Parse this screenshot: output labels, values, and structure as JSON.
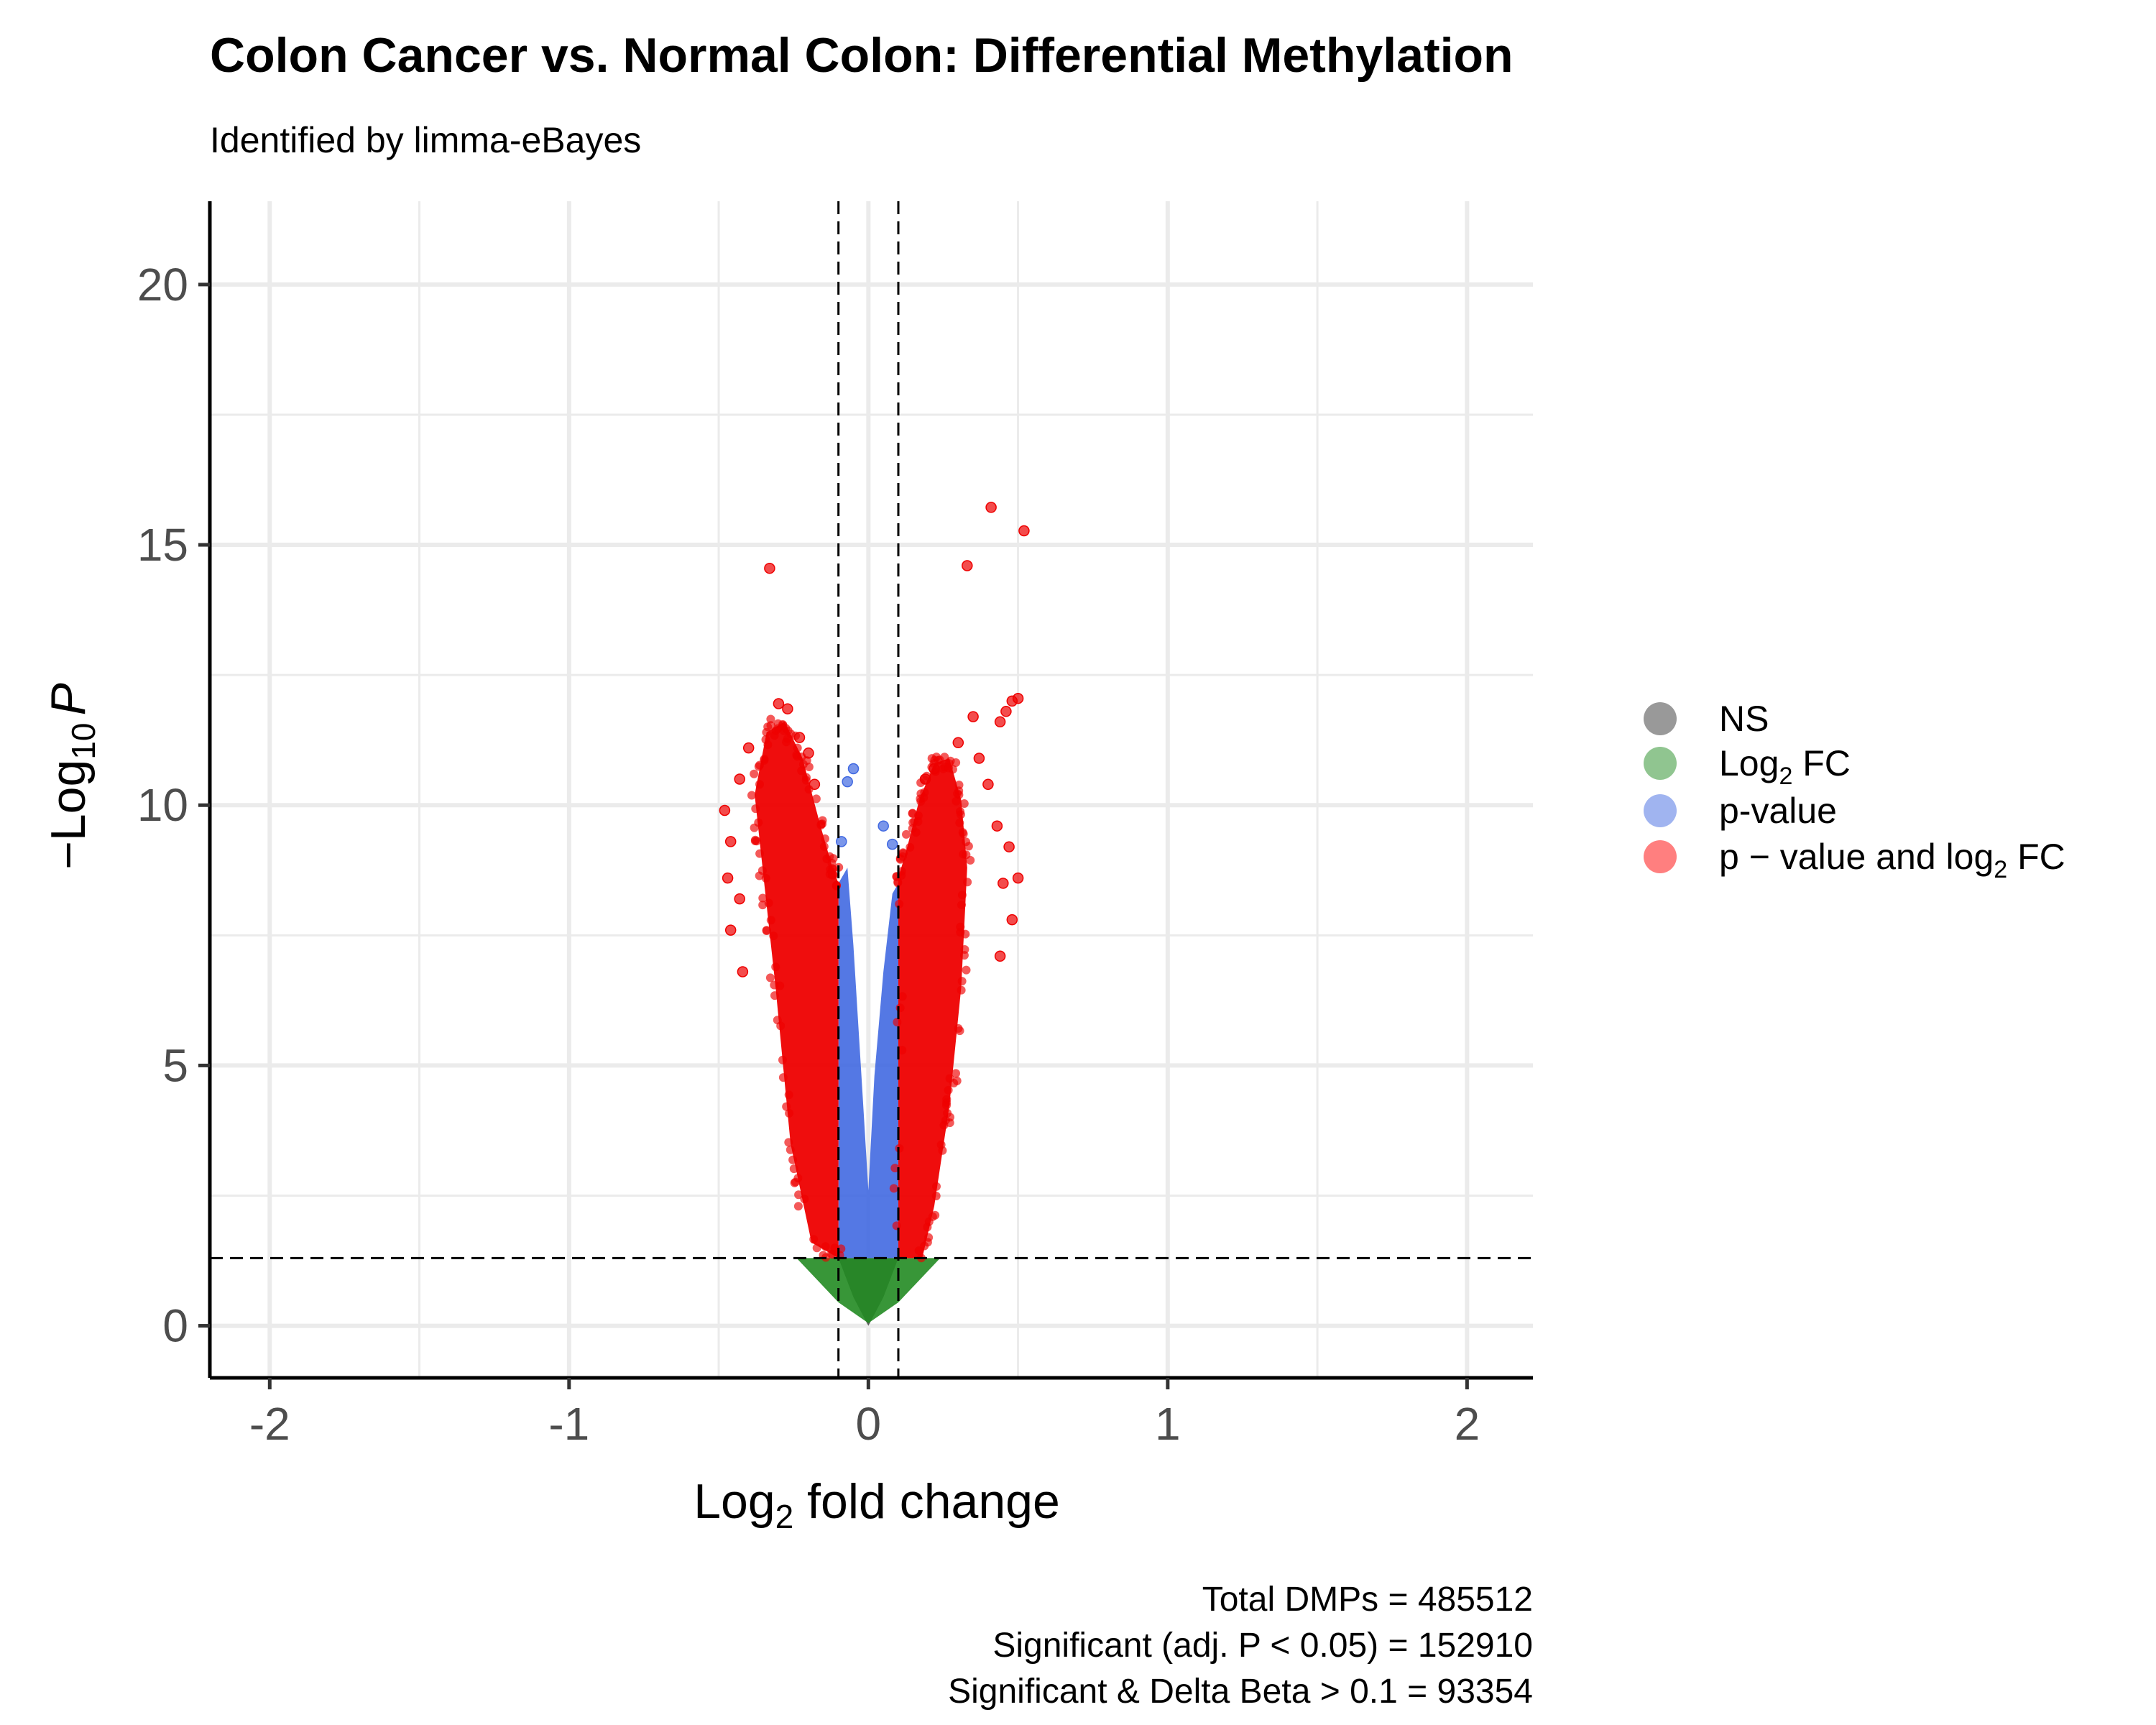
{
  "chart_data": {
    "type": "scatter",
    "title": "Colon Cancer vs. Normal Colon: Differential Methylation",
    "subtitle": "Identified by limma-eBayes",
    "xlabel": "Log₂ fold change",
    "xlabel_main": "Log",
    "xlabel_sub": "2",
    "xlabel_rest": " fold change",
    "ylabel_prefix": "−Log",
    "ylabel_sub": "10",
    "ylabel_var": "P",
    "xlim": [
      -2.2,
      2.22
    ],
    "ylim": [
      -1,
      21.6
    ],
    "x_ticks": [
      {
        "value": -2,
        "label": "-2"
      },
      {
        "value": -1,
        "label": "-1"
      },
      {
        "value": 0,
        "label": "0"
      },
      {
        "value": 1,
        "label": "1"
      },
      {
        "value": 2,
        "label": "2"
      }
    ],
    "y_ticks": [
      {
        "value": 0,
        "label": "0"
      },
      {
        "value": 5,
        "label": "5"
      },
      {
        "value": 10,
        "label": "10"
      },
      {
        "value": 15,
        "label": "15"
      },
      {
        "value": 20,
        "label": "20"
      }
    ],
    "grid": true,
    "thresholds": {
      "fold_change": [
        -0.1,
        0.1
      ],
      "neg_log10_p": 1.3
    },
    "legend": {
      "position": "right",
      "entries": [
        {
          "key": "ns",
          "label": "NS",
          "color": "#808080"
        },
        {
          "key": "fc",
          "label_main": "Log",
          "label_sub": "2",
          "label_rest": " FC",
          "label": "Log₂ FC",
          "color": "#228B22"
        },
        {
          "key": "p",
          "label": "p-value",
          "color": "#4169E1"
        },
        {
          "key": "both",
          "label_main": "p − value and log",
          "label_sub": "2",
          "label_rest": " FC",
          "label": "p − value and log₂ FC",
          "color": "#FF0000"
        }
      ]
    },
    "series": [
      {
        "key": "ns",
        "color": "#4d4d4d",
        "envelope": [
          [
            -0.1,
            1.3
          ],
          [
            -0.05,
            0.55
          ],
          [
            0,
            0
          ],
          [
            0.05,
            0.55
          ],
          [
            0.1,
            1.3
          ]
        ]
      },
      {
        "key": "fc",
        "color": "#228B22",
        "envelope": [
          [
            -0.24,
            1.3
          ],
          [
            -0.1,
            0.45
          ],
          [
            0,
            0.05
          ],
          [
            0.1,
            0.45
          ],
          [
            0.24,
            1.3
          ]
        ]
      },
      {
        "key": "p",
        "color": "#4169E1",
        "envelope": [
          [
            -0.1,
            1.3
          ],
          [
            -0.1,
            8.5
          ],
          [
            -0.07,
            8.8
          ],
          [
            -0.05,
            7.3
          ],
          [
            -0.02,
            4.5
          ],
          [
            0,
            2.6
          ],
          [
            0.02,
            4.8
          ],
          [
            0.05,
            6.8
          ],
          [
            0.08,
            8.3
          ],
          [
            0.1,
            8.5
          ],
          [
            0.1,
            1.3
          ]
        ]
      },
      {
        "key": "both",
        "color": "#EE0000",
        "envelope": [
          [
            -0.1,
            1.3
          ],
          [
            -0.19,
            1.6
          ],
          [
            -0.26,
            3.5
          ],
          [
            -0.31,
            6.5
          ],
          [
            -0.35,
            8.6
          ],
          [
            -0.38,
            10.2
          ],
          [
            -0.34,
            11.4
          ],
          [
            -0.28,
            11.6
          ],
          [
            -0.22,
            10.9
          ],
          [
            -0.16,
            9.6
          ],
          [
            -0.12,
            8.8
          ],
          [
            -0.1,
            8.5
          ]
        ]
      },
      {
        "key": "both",
        "color": "#EE0000",
        "envelope": [
          [
            0.1,
            1.3
          ],
          [
            0.1,
            8.6
          ],
          [
            0.13,
            9.2
          ],
          [
            0.17,
            10.1
          ],
          [
            0.22,
            10.8
          ],
          [
            0.27,
            10.9
          ],
          [
            0.31,
            10.1
          ],
          [
            0.33,
            8.8
          ],
          [
            0.31,
            6.5
          ],
          [
            0.27,
            4.2
          ],
          [
            0.22,
            2.3
          ],
          [
            0.18,
            1.3
          ]
        ]
      }
    ],
    "scattered_points": [
      {
        "x": -0.33,
        "y": 14.55,
        "color": "#EE0000"
      },
      {
        "x": 0.41,
        "y": 15.72,
        "color": "#EE0000"
      },
      {
        "x": 0.52,
        "y": 15.27,
        "color": "#EE0000"
      },
      {
        "x": 0.33,
        "y": 14.6,
        "color": "#EE0000"
      },
      {
        "x": 0.5,
        "y": 12.05,
        "color": "#EE0000"
      },
      {
        "x": 0.48,
        "y": 12.0,
        "color": "#EE0000"
      },
      {
        "x": 0.46,
        "y": 11.8,
        "color": "#EE0000"
      },
      {
        "x": 0.44,
        "y": 11.6,
        "color": "#EE0000"
      },
      {
        "x": 0.35,
        "y": 11.7,
        "color": "#EE0000"
      },
      {
        "x": 0.3,
        "y": 11.2,
        "color": "#EE0000"
      },
      {
        "x": 0.37,
        "y": 10.9,
        "color": "#EE0000"
      },
      {
        "x": 0.4,
        "y": 10.4,
        "color": "#EE0000"
      },
      {
        "x": 0.43,
        "y": 9.6,
        "color": "#EE0000"
      },
      {
        "x": 0.47,
        "y": 9.2,
        "color": "#EE0000"
      },
      {
        "x": 0.45,
        "y": 8.5,
        "color": "#EE0000"
      },
      {
        "x": 0.5,
        "y": 8.6,
        "color": "#EE0000"
      },
      {
        "x": 0.48,
        "y": 7.8,
        "color": "#EE0000"
      },
      {
        "x": 0.44,
        "y": 7.1,
        "color": "#EE0000"
      },
      {
        "x": 0.19,
        "y": 10.5,
        "color": "#EE0000"
      },
      {
        "x": 0.22,
        "y": 10.7,
        "color": "#EE0000"
      },
      {
        "x": -0.3,
        "y": 11.95,
        "color": "#EE0000"
      },
      {
        "x": -0.27,
        "y": 11.85,
        "color": "#EE0000"
      },
      {
        "x": -0.23,
        "y": 11.3,
        "color": "#EE0000"
      },
      {
        "x": -0.2,
        "y": 11.0,
        "color": "#EE0000"
      },
      {
        "x": -0.4,
        "y": 11.1,
        "color": "#EE0000"
      },
      {
        "x": -0.43,
        "y": 10.5,
        "color": "#EE0000"
      },
      {
        "x": -0.48,
        "y": 9.9,
        "color": "#EE0000"
      },
      {
        "x": -0.46,
        "y": 9.3,
        "color": "#EE0000"
      },
      {
        "x": -0.47,
        "y": 8.6,
        "color": "#EE0000"
      },
      {
        "x": -0.43,
        "y": 8.2,
        "color": "#EE0000"
      },
      {
        "x": -0.46,
        "y": 7.6,
        "color": "#EE0000"
      },
      {
        "x": -0.42,
        "y": 6.8,
        "color": "#EE0000"
      },
      {
        "x": -0.18,
        "y": 10.4,
        "color": "#EE0000"
      },
      {
        "x": -0.05,
        "y": 10.7,
        "color": "#4169E1"
      },
      {
        "x": -0.07,
        "y": 10.45,
        "color": "#4169E1"
      },
      {
        "x": 0.05,
        "y": 9.6,
        "color": "#4169E1"
      },
      {
        "x": -0.09,
        "y": 9.3,
        "color": "#4169E1"
      },
      {
        "x": 0.08,
        "y": 9.25,
        "color": "#4169E1"
      }
    ],
    "caption": [
      "Total DMPs = 485512",
      "Significant (adj. P < 0.05) = 152910",
      "Significant & Delta Beta > 0.1 = 93354"
    ]
  }
}
